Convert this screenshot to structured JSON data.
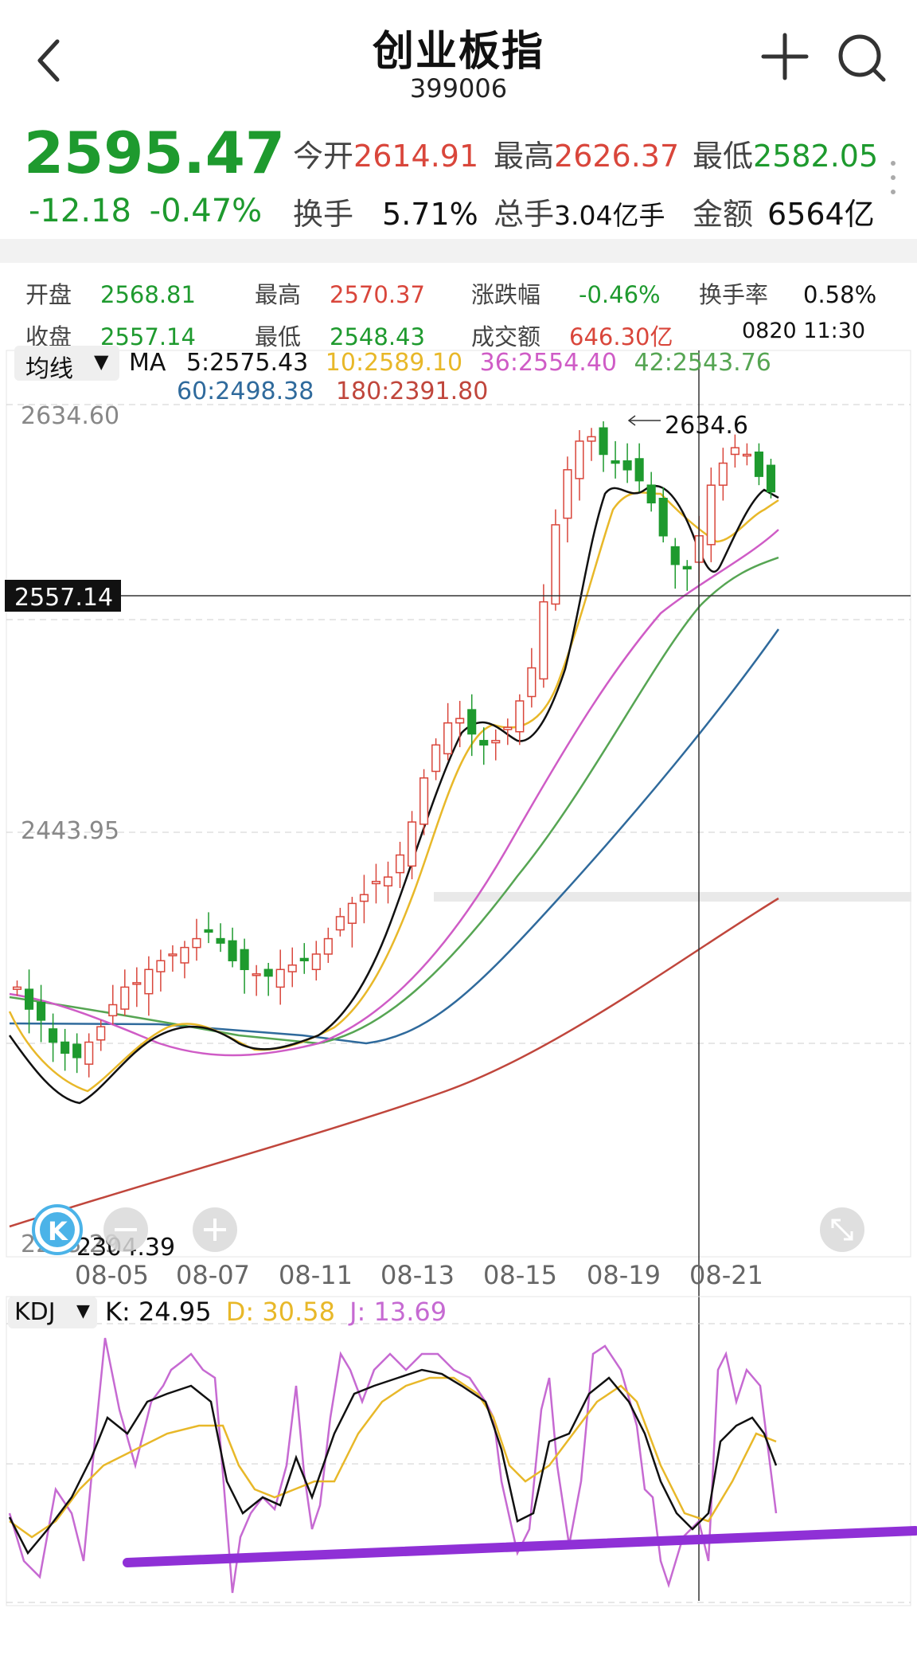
{
  "header": {
    "title": "创业板指",
    "code": "399006"
  },
  "quote": {
    "price": "2595.47",
    "change": "-12.18",
    "change_pct": "-0.47%",
    "open_label": "今开",
    "open": "2614.91",
    "high_label": "最高",
    "high": "2626.37",
    "low_label": "最低",
    "low": "2582.05",
    "turnover_label": "换手",
    "turnover": "5.71%",
    "volume_label": "总手",
    "volume": "3.04亿手",
    "amount_label": "金额",
    "amount": "6564亿"
  },
  "bar_info": {
    "open_label": "开盘",
    "open": "2568.81",
    "high_label": "最高",
    "high": "2570.37",
    "pct_label": "涨跌幅",
    "pct": "-0.46%",
    "turnover_label": "换手率",
    "turnover": "0.58%",
    "close_label": "收盘",
    "close": "2557.14",
    "low_label": "最低",
    "low": "2548.43",
    "amount_label": "成交额",
    "amount": "646.30亿",
    "time": "0820 11:30"
  },
  "ma_legend": {
    "selector": "均线",
    "ma_label": "MA",
    "ma5": "5:2575.43",
    "ma10": "10:2589.10",
    "ma36": "36:2554.40",
    "ma42": "42:2543.76",
    "ma60": "60:2498.38",
    "ma180": "180:2391.80"
  },
  "price_axis": {
    "top": "2634.60",
    "mid": "2443.95",
    "bottom": "2253.29",
    "crosshair": "2557.14",
    "max_marker": "2634.6",
    "min_marker": "2304.39"
  },
  "x_ticks": [
    "08-05",
    "08-07",
    "08-11",
    "08-13",
    "08-15",
    "08-19",
    "08-21"
  ],
  "kdj_legend": {
    "selector": "KDJ",
    "k": "K: 24.95",
    "d": "D: 30.58",
    "j": "J: 13.69"
  },
  "colors": {
    "up": "#d9463b",
    "down": "#1e9a2e",
    "ma5": "#111111",
    "ma10": "#e8b829",
    "ma36": "#cf5cc6",
    "ma42": "#56a553",
    "ma60": "#2f6a9c",
    "ma180": "#c0463c",
    "kdj_k": "#111111",
    "kdj_d": "#e8b829",
    "kdj_j": "#c66ad2",
    "trend_line": "#8f30d6"
  },
  "icons": {
    "back": "chevron-left-icon",
    "add": "plus-icon",
    "search": "search-icon",
    "more": "more-dots-icon",
    "k_logo": "k-logo-icon",
    "zoom_out": "zoom-out-icon",
    "zoom_in": "zoom-in-icon",
    "fullscreen": "fullscreen-icon"
  },
  "chart_data": {
    "type": "candlestick",
    "ylim": [
      2253.29,
      2634.6
    ],
    "x_ticks": [
      "08-05",
      "08-07",
      "08-11",
      "08-13",
      "08-15",
      "08-19",
      "08-21"
    ],
    "closes": [
      2370,
      2360,
      2355,
      2345,
      2340,
      2338,
      2345,
      2352,
      2362,
      2370,
      2372,
      2378,
      2382,
      2385,
      2388,
      2392,
      2395,
      2390,
      2382,
      2378,
      2376,
      2375,
      2378,
      2380,
      2382,
      2385,
      2392,
      2402,
      2408,
      2412,
      2418,
      2420,
      2430,
      2445,
      2465,
      2480,
      2490,
      2492,
      2485,
      2480,
      2482,
      2488,
      2500,
      2515,
      2545,
      2580,
      2605,
      2618,
      2620,
      2612,
      2608,
      2605,
      2600,
      2590,
      2575,
      2562,
      2560,
      2575,
      2598,
      2608,
      2615,
      2612,
      2602,
      2595
    ],
    "series": [
      {
        "name": "MA5",
        "last": 2575.43
      },
      {
        "name": "MA10",
        "last": 2589.1
      },
      {
        "name": "MA36",
        "last": 2554.4
      },
      {
        "name": "MA42",
        "last": 2543.76
      },
      {
        "name": "MA60",
        "last": 2498.38
      },
      {
        "name": "MA180",
        "last": 2391.8
      }
    ],
    "kdj": {
      "K": 24.95,
      "D": 30.58,
      "J": 13.69
    }
  }
}
